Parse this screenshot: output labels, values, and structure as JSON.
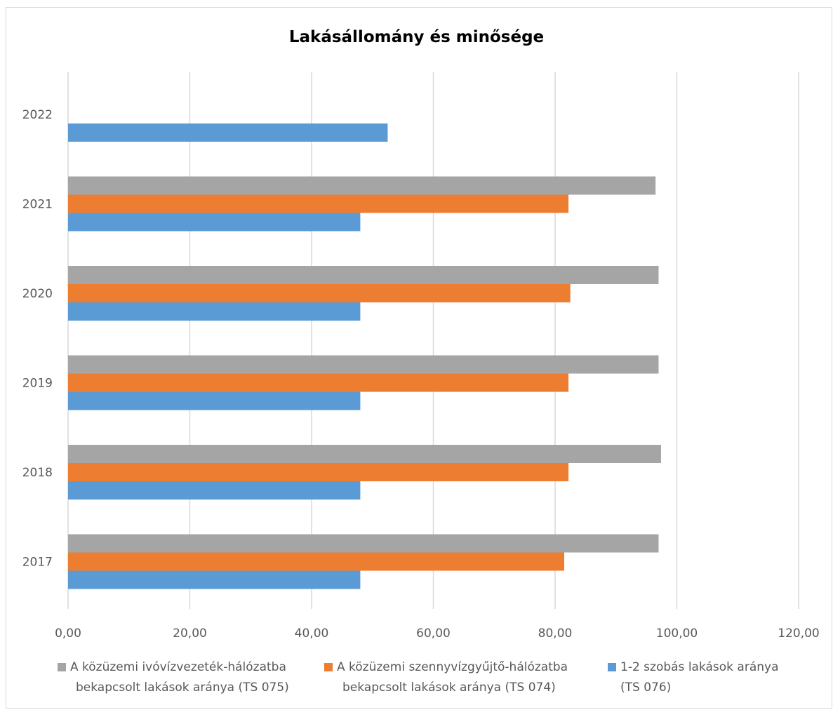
{
  "chart_data": {
    "type": "bar",
    "orientation": "horizontal",
    "title": "Lakásállomány és minősége",
    "categories": [
      "2017",
      "2018",
      "2019",
      "2020",
      "2021",
      "2022"
    ],
    "series": [
      {
        "name": "A közüzemi ivóvízvezeték-hálózatba bekapcsolt lakások aránya (TS 075)",
        "name_lines": [
          "A közüzemi ivóvízvezeték-hálózatba",
          "bekapcsolt lakások aránya (TS 075)"
        ],
        "color": "#a5a5a5",
        "values": [
          97.0,
          97.4,
          97.0,
          97.0,
          96.5,
          null
        ]
      },
      {
        "name": "A közüzemi szennyvízgyűjtő-hálózatba bekapcsolt lakások aránya (TS 074)",
        "name_lines": [
          "A közüzemi szennyvízgyűjtő-hálózatba",
          "bekapcsolt lakások aránya (TS 074)"
        ],
        "color": "#ed7d31",
        "values": [
          81.5,
          82.2,
          82.2,
          82.5,
          82.2,
          null
        ]
      },
      {
        "name": "1-2 szobás lakások aránya (TS 076)",
        "name_lines": [
          "1-2 szobás lakások aránya",
          "(TS 076)"
        ],
        "color": "#5b9bd5",
        "values": [
          48.0,
          48.0,
          48.0,
          48.0,
          48.0,
          52.5
        ]
      }
    ],
    "xlim": [
      0,
      120
    ],
    "xticks": [
      "0,00",
      "20,00",
      "40,00",
      "60,00",
      "80,00",
      "100,00",
      "120,00"
    ],
    "grid": "vertical",
    "legend": "bottom"
  }
}
